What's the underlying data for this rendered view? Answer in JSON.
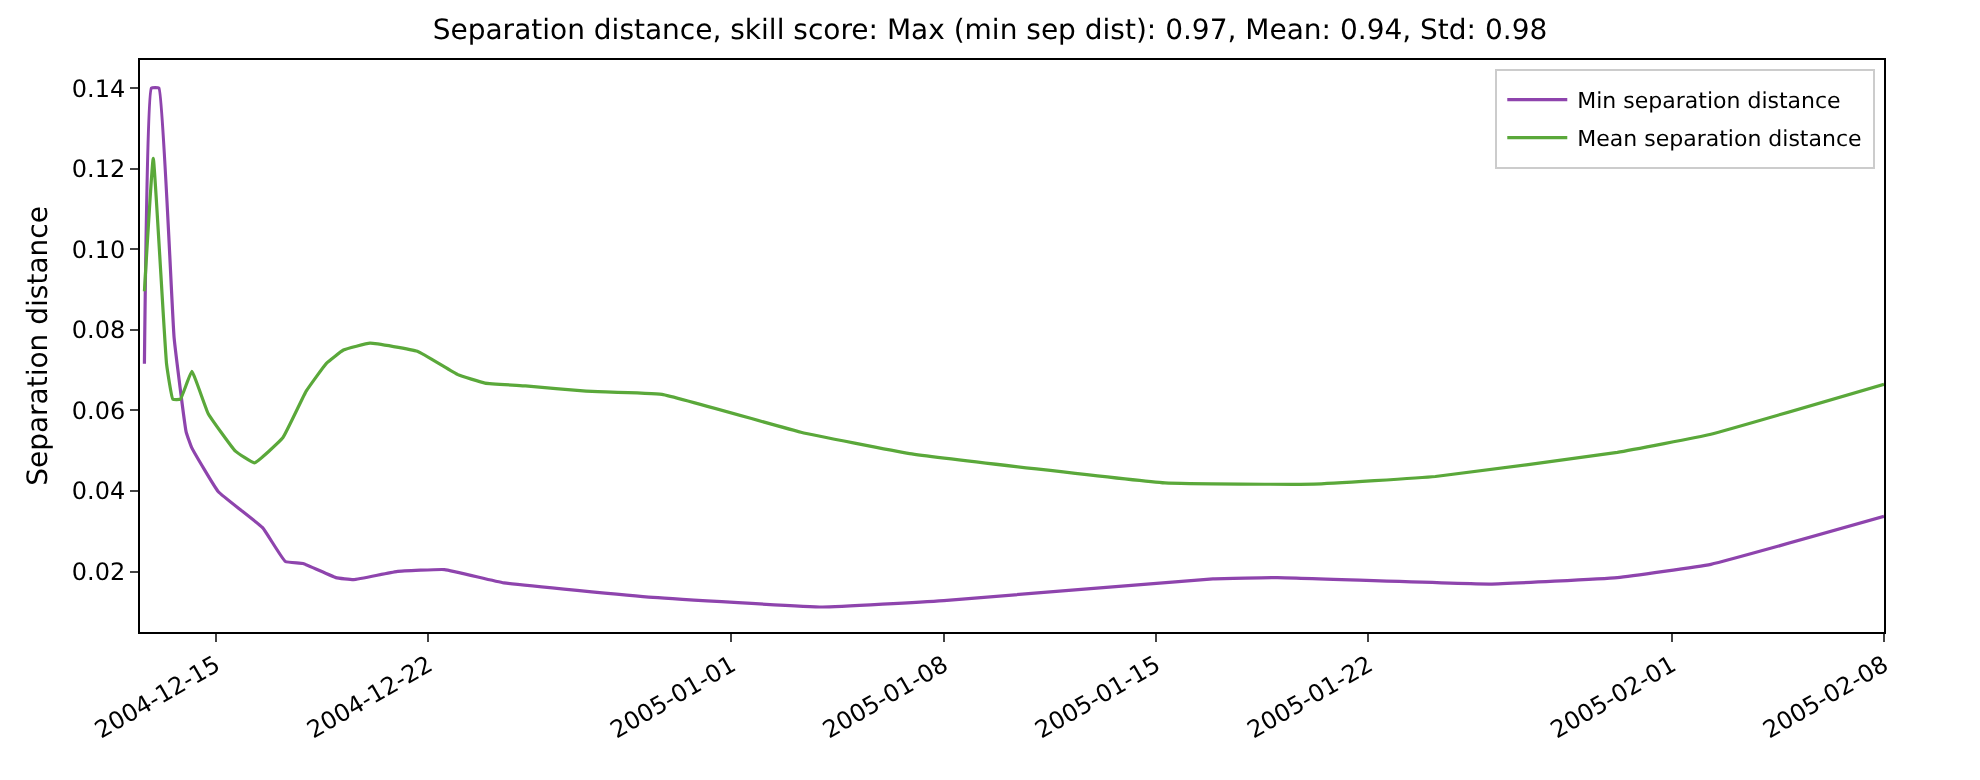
{
  "chart_data": {
    "type": "line",
    "title": "Separation distance, skill score: Max (min sep dist): 0.97, Mean: 0.94, Std: 0.98",
    "ylabel": "Separation distance",
    "xlim": [
      "2004-12-12T12:00",
      "2005-02-08"
    ],
    "xticks": [
      {
        "value": "2004-12-15",
        "label": "2004-12-15"
      },
      {
        "value": "2004-12-22",
        "label": "2004-12-22"
      },
      {
        "value": "2005-01-01",
        "label": "2005-01-01"
      },
      {
        "value": "2005-01-08",
        "label": "2005-01-08"
      },
      {
        "value": "2005-01-15",
        "label": "2005-01-15"
      },
      {
        "value": "2005-01-22",
        "label": "2005-01-22"
      },
      {
        "value": "2005-02-01",
        "label": "2005-02-01"
      },
      {
        "value": "2005-02-08",
        "label": "2005-02-08"
      }
    ],
    "ylim": [
      0.005,
      0.147
    ],
    "yticks": [
      {
        "value": 0.02,
        "label": "0.02"
      },
      {
        "value": 0.04,
        "label": "0.04"
      },
      {
        "value": 0.06,
        "label": "0.06"
      },
      {
        "value": 0.08,
        "label": "0.08"
      },
      {
        "value": 0.1,
        "label": "0.10"
      },
      {
        "value": 0.12,
        "label": "0.12"
      },
      {
        "value": 0.14,
        "label": "0.14"
      }
    ],
    "legend": "top right",
    "marker": "none",
    "line_style": "solid",
    "series": [
      {
        "name": "Min separation distance",
        "color": "#8e44ad",
        "x": [
          "2004-12-12T15:30",
          "2004-12-12T21:00",
          "2004-12-13T03:00",
          "2004-12-13T15:00",
          "2004-12-14T00:30",
          "2004-12-14T05:00",
          "2004-12-15T02:00",
          "2004-12-16T13:00",
          "2004-12-17T07:00",
          "2004-12-17T21:00",
          "2004-12-18T23:00",
          "2004-12-19T13:00",
          "2004-12-20T23:00",
          "2004-12-22T13:00",
          "2004-12-24T12:00",
          "2004-12-29T10:00",
          "2005-01-04",
          "2005-01-08",
          "2005-01-16T21:00",
          "2005-01-19",
          "2005-01-26",
          "2005-01-30T05:00",
          "2005-02-02T07:00",
          "2005-02-08"
        ],
        "values": [
          0.0716,
          0.14,
          0.14,
          0.078,
          0.0547,
          0.0507,
          0.0398,
          0.0309,
          0.0225,
          0.022,
          0.0185,
          0.018,
          0.02,
          0.0205,
          0.0172,
          0.0136,
          0.0112,
          0.0128,
          0.0182,
          0.0185,
          0.0169,
          0.0185,
          0.0218,
          0.0337
        ]
      },
      {
        "name": "Mean separation distance",
        "color": "#5aa83a",
        "x": [
          "2004-12-12T15:30",
          "2004-12-12T22:30",
          "2004-12-13T09:00",
          "2004-12-13T14:00",
          "2004-12-13T20:00",
          "2004-12-14T05:00",
          "2004-12-14T18:00",
          "2004-12-15T15:30",
          "2004-12-16T06:30",
          "2004-12-17T05:00",
          "2004-12-17T23:30",
          "2004-12-18T15:30",
          "2004-12-19T05:00",
          "2004-12-20T02:00",
          "2004-12-21T15:30",
          "2004-12-22T23:30",
          "2004-12-23T21:00",
          "2004-12-25T05:00",
          "2004-12-27T05:00",
          "2004-12-29T17:00",
          "2005-01-03T07:00",
          "2005-01-06T21:00",
          "2005-01-15T07:00",
          "2005-01-20T05:00",
          "2005-01-24T05:00",
          "2005-01-30T05:00",
          "2005-02-02T07:00",
          "2005-02-08"
        ],
        "values": [
          0.0896,
          0.1226,
          0.0716,
          0.0628,
          0.0628,
          0.0697,
          0.0592,
          0.0499,
          0.047,
          0.0532,
          0.0648,
          0.0717,
          0.075,
          0.0767,
          0.0747,
          0.0689,
          0.0668,
          0.0661,
          0.0648,
          0.064,
          0.0546,
          0.0493,
          0.042,
          0.0417,
          0.0436,
          0.0496,
          0.0541,
          0.0665
        ]
      }
    ]
  }
}
